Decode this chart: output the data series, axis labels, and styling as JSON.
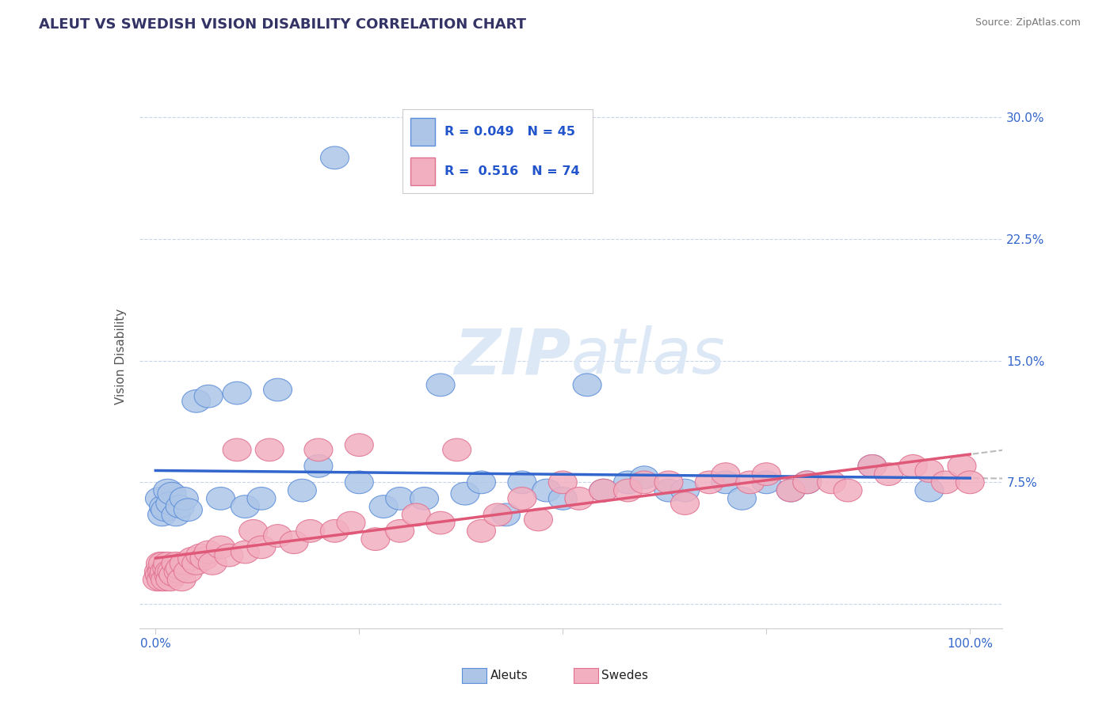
{
  "title": "ALEUT VS SWEDISH VISION DISABILITY CORRELATION CHART",
  "source": "Source: ZipAtlas.com",
  "ylabel": "Vision Disability",
  "aleuts_R": 0.049,
  "aleuts_N": 45,
  "swedes_R": 0.516,
  "swedes_N": 74,
  "aleuts_color": "#adc6e8",
  "swedes_color": "#f2afc0",
  "aleuts_edge_color": "#5b8dd9",
  "swedes_edge_color": "#e07090",
  "aleuts_line_color": "#3366cc",
  "swedes_line_color": "#e05878",
  "dash_line_color": "#bbbbbb",
  "legend_text_color": "#2255cc",
  "background_color": "#ffffff",
  "grid_color": "#c8d4e8",
  "watermark_color": "#dce8f5",
  "aleuts_x": [
    0.5,
    0.8,
    1.0,
    1.2,
    1.5,
    1.8,
    2.0,
    2.5,
    3.0,
    3.5,
    4.0,
    5.0,
    6.5,
    8.0,
    10.0,
    11.0,
    13.0,
    15.0,
    18.0,
    20.0,
    22.0,
    25.0,
    28.0,
    30.0,
    33.0,
    35.0,
    38.0,
    40.0,
    43.0,
    45.0,
    48.0,
    50.0,
    53.0,
    55.0,
    58.0,
    60.0,
    63.0,
    65.0,
    70.0,
    72.0,
    75.0,
    78.0,
    80.0,
    88.0,
    95.0
  ],
  "aleuts_y": [
    6.5,
    5.5,
    6.0,
    5.8,
    7.0,
    6.2,
    6.8,
    5.5,
    6.0,
    6.5,
    5.8,
    12.5,
    12.8,
    6.5,
    13.0,
    6.0,
    6.5,
    13.2,
    7.0,
    8.5,
    27.5,
    7.5,
    6.0,
    6.5,
    6.5,
    13.5,
    6.8,
    7.5,
    5.5,
    7.5,
    7.0,
    6.5,
    13.5,
    7.0,
    7.5,
    7.8,
    7.0,
    7.0,
    7.5,
    6.5,
    7.5,
    7.0,
    7.5,
    8.5,
    7.0
  ],
  "swedes_x": [
    0.2,
    0.4,
    0.5,
    0.6,
    0.7,
    0.8,
    0.9,
    1.0,
    1.1,
    1.2,
    1.4,
    1.5,
    1.6,
    1.7,
    1.8,
    2.0,
    2.2,
    2.5,
    2.8,
    3.0,
    3.2,
    3.5,
    4.0,
    4.5,
    5.0,
    5.5,
    6.0,
    6.5,
    7.0,
    8.0,
    9.0,
    10.0,
    11.0,
    12.0,
    13.0,
    14.0,
    15.0,
    17.0,
    19.0,
    20.0,
    22.0,
    24.0,
    25.0,
    27.0,
    30.0,
    32.0,
    35.0,
    37.0,
    40.0,
    42.0,
    45.0,
    47.0,
    50.0,
    52.0,
    55.0,
    58.0,
    60.0,
    63.0,
    65.0,
    68.0,
    70.0,
    73.0,
    75.0,
    78.0,
    80.0,
    83.0,
    85.0,
    88.0,
    90.0,
    93.0,
    95.0,
    97.0,
    99.0,
    100.0
  ],
  "swedes_y": [
    1.5,
    2.0,
    1.8,
    2.5,
    1.5,
    2.0,
    2.5,
    1.8,
    2.0,
    1.5,
    2.2,
    2.5,
    1.8,
    2.0,
    1.5,
    2.0,
    1.8,
    2.5,
    2.0,
    2.2,
    1.5,
    2.5,
    2.0,
    2.8,
    2.5,
    3.0,
    2.8,
    3.2,
    2.5,
    3.5,
    3.0,
    9.5,
    3.2,
    4.5,
    3.5,
    9.5,
    4.2,
    3.8,
    4.5,
    9.5,
    4.5,
    5.0,
    9.8,
    4.0,
    4.5,
    5.5,
    5.0,
    9.5,
    4.5,
    5.5,
    6.5,
    5.2,
    7.5,
    6.5,
    7.0,
    7.0,
    7.5,
    7.5,
    6.2,
    7.5,
    8.0,
    7.5,
    8.0,
    7.0,
    7.5,
    7.5,
    7.0,
    8.5,
    8.0,
    8.5,
    8.2,
    7.5,
    8.5,
    7.5
  ]
}
